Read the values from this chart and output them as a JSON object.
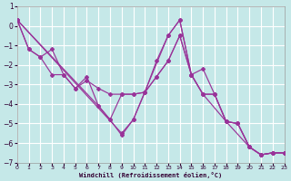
{
  "xlabel": "Windchill (Refroidissement éolien,°C)",
  "bg_color": "#c5e8e8",
  "line_color": "#993399",
  "grid_color": "#ffffff",
  "xlim": [
    0,
    23
  ],
  "ylim": [
    -7,
    1
  ],
  "yticks": [
    -7,
    -6,
    -5,
    -4,
    -3,
    -2,
    -1,
    0,
    1
  ],
  "xticks": [
    0,
    1,
    2,
    3,
    4,
    5,
    6,
    7,
    8,
    9,
    10,
    11,
    12,
    13,
    14,
    15,
    16,
    17,
    18,
    19,
    20,
    21,
    22,
    23
  ],
  "series": [
    {
      "x": [
        0,
        1,
        2,
        3,
        4,
        5,
        6,
        7,
        8,
        9,
        10,
        11,
        12,
        13,
        14,
        15,
        16,
        17,
        18,
        19,
        20,
        21,
        22,
        23
      ],
      "y": [
        0.3,
        -1.2,
        -1.6,
        -1.2,
        -2.5,
        -3.2,
        -2.6,
        -4.1,
        -4.8,
        -3.5,
        -3.5,
        -3.4,
        -2.6,
        -1.8,
        -0.5,
        -2.5,
        -3.5,
        -3.5,
        -4.9,
        -5.0,
        -6.2,
        -6.6,
        -6.5,
        -6.5
      ]
    },
    {
      "x": [
        0,
        1,
        2,
        3,
        4,
        5,
        6,
        7,
        8,
        9,
        10,
        11,
        12,
        13,
        14,
        15,
        16,
        17,
        18,
        19,
        20,
        21,
        22,
        23
      ],
      "y": [
        0.3,
        -1.2,
        -1.6,
        -2.5,
        -2.5,
        -3.2,
        -2.8,
        -3.2,
        -3.5,
        -3.5,
        -3.5,
        -3.4,
        -2.6,
        -1.8,
        -0.5,
        -2.5,
        -3.5,
        -3.5,
        -4.9,
        -5.0,
        -6.2,
        -6.6,
        -6.5,
        -6.5
      ]
    },
    {
      "x": [
        0,
        9,
        10,
        11,
        12,
        13,
        14,
        15,
        16,
        17,
        18,
        19,
        20,
        21,
        22,
        23
      ],
      "y": [
        0.3,
        -5.5,
        -4.8,
        -3.4,
        -1.8,
        -0.5,
        0.3,
        -2.5,
        -2.2,
        -3.5,
        -4.9,
        -5.0,
        -6.2,
        -6.6,
        -6.5,
        -6.5
      ]
    },
    {
      "x": [
        0,
        7,
        8,
        9,
        10,
        13,
        14,
        15,
        16,
        18,
        20,
        21,
        22,
        23
      ],
      "y": [
        0.3,
        -4.1,
        -4.8,
        -5.6,
        -4.8,
        -0.5,
        0.3,
        -2.5,
        -3.5,
        -4.9,
        -6.2,
        -6.6,
        -6.5,
        -6.5
      ]
    }
  ]
}
